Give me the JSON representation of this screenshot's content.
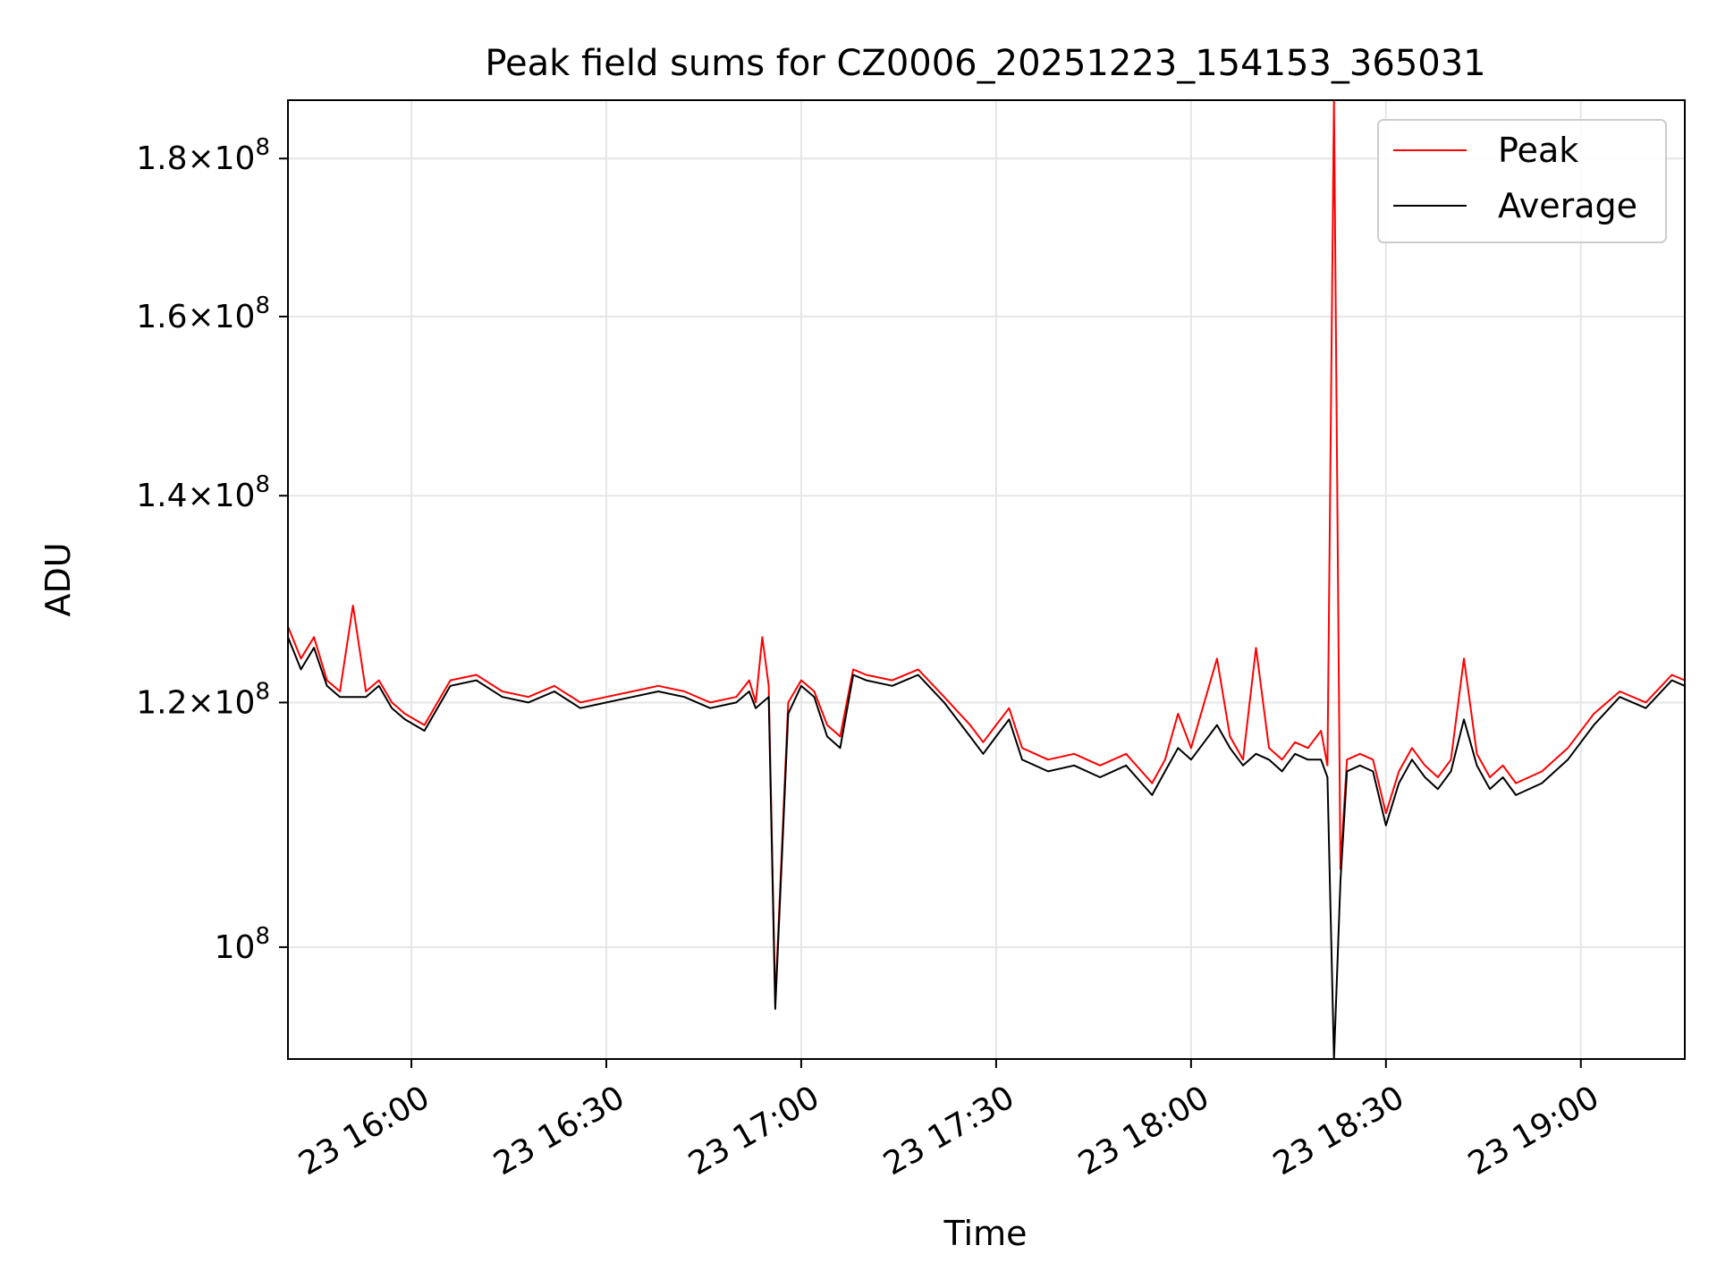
{
  "chart_data": {
    "type": "line",
    "title": "Peak field sums for CZ0006_20251223_154153_365031",
    "xlabel": "Time",
    "ylabel": "ADU",
    "y_scale": "log",
    "x_range": [
      "2025-12-23 15:41",
      "2025-12-23 19:16"
    ],
    "ylim": [
      92000000,
      188000000
    ],
    "grid": true,
    "legend_position": "upper right",
    "x_ticks": [
      {
        "time": "2025-12-23 16:00",
        "label": "23 16:00"
      },
      {
        "time": "2025-12-23 16:30",
        "label": "23 16:30"
      },
      {
        "time": "2025-12-23 17:00",
        "label": "23 17:00"
      },
      {
        "time": "2025-12-23 17:30",
        "label": "23 17:30"
      },
      {
        "time": "2025-12-23 18:00",
        "label": "23 18:00"
      },
      {
        "time": "2025-12-23 18:30",
        "label": "23 18:30"
      },
      {
        "time": "2025-12-23 19:00",
        "label": "23 19:00"
      }
    ],
    "y_ticks": [
      {
        "value": 100000000,
        "mantissa": "",
        "exponent": "8"
      },
      {
        "value": 120000000,
        "mantissa": "1.2",
        "exponent": "8"
      },
      {
        "value": 140000000,
        "mantissa": "1.4",
        "exponent": "8"
      },
      {
        "value": 160000000,
        "mantissa": "1.6",
        "exponent": "8"
      },
      {
        "value": 180000000,
        "mantissa": "1.8",
        "exponent": "8"
      }
    ],
    "series": [
      {
        "name": "Peak",
        "color": "#ff0000",
        "x": [
          "15:41",
          "15:43",
          "15:45",
          "15:47",
          "15:49",
          "15:51",
          "15:53",
          "15:55",
          "15:57",
          "15:59",
          "16:02",
          "16:06",
          "16:10",
          "16:14",
          "16:18",
          "16:22",
          "16:26",
          "16:30",
          "16:34",
          "16:38",
          "16:42",
          "16:46",
          "16:50",
          "16:52",
          "16:53",
          "16:54",
          "16:55",
          "16:56",
          "16:58",
          "17:00",
          "17:02",
          "17:04",
          "17:06",
          "17:08",
          "17:10",
          "17:14",
          "17:18",
          "17:22",
          "17:26",
          "17:28",
          "17:30",
          "17:32",
          "17:34",
          "17:38",
          "17:42",
          "17:46",
          "17:50",
          "17:54",
          "17:56",
          "17:58",
          "18:00",
          "18:04",
          "18:06",
          "18:08",
          "18:10",
          "18:12",
          "18:14",
          "18:16",
          "18:18",
          "18:20",
          "18:21",
          "18:22",
          "18:23",
          "18:24",
          "18:26",
          "18:28",
          "18:30",
          "18:32",
          "18:34",
          "18:36",
          "18:38",
          "18:40",
          "18:42",
          "18:44",
          "18:46",
          "18:48",
          "18:50",
          "18:54",
          "18:58",
          "19:02",
          "19:06",
          "19:10",
          "19:14",
          "19:16"
        ],
        "values": [
          127000000,
          124000000,
          126000000,
          122000000,
          121000000,
          129000000,
          121000000,
          122000000,
          120000000,
          119000000,
          118000000,
          122000000,
          122500000,
          121000000,
          120500000,
          121500000,
          120000000,
          120500000,
          121000000,
          121500000,
          121000000,
          120000000,
          120500000,
          122000000,
          120000000,
          126000000,
          121500000,
          96000000,
          120000000,
          122000000,
          121000000,
          118000000,
          117000000,
          123000000,
          122500000,
          122000000,
          123000000,
          120500000,
          118000000,
          116500000,
          118000000,
          119500000,
          116000000,
          115000000,
          115500000,
          114500000,
          115500000,
          113000000,
          115000000,
          119000000,
          116000000,
          124000000,
          117000000,
          115000000,
          125000000,
          116000000,
          115000000,
          116500000,
          116000000,
          117500000,
          114500000,
          188000000,
          106000000,
          115000000,
          115500000,
          115000000,
          110500000,
          114000000,
          116000000,
          114500000,
          113500000,
          115000000,
          124000000,
          115500000,
          113500000,
          114500000,
          113000000,
          114000000,
          116000000,
          119000000,
          121000000,
          120000000,
          122500000,
          122000000
        ]
      },
      {
        "name": "Average",
        "color": "#000000",
        "x": [
          "15:41",
          "15:43",
          "15:45",
          "15:47",
          "15:49",
          "15:51",
          "15:53",
          "15:55",
          "15:57",
          "15:59",
          "16:02",
          "16:06",
          "16:10",
          "16:14",
          "16:18",
          "16:22",
          "16:26",
          "16:30",
          "16:34",
          "16:38",
          "16:42",
          "16:46",
          "16:50",
          "16:52",
          "16:53",
          "16:54",
          "16:55",
          "16:56",
          "16:58",
          "17:00",
          "17:02",
          "17:04",
          "17:06",
          "17:08",
          "17:10",
          "17:14",
          "17:18",
          "17:22",
          "17:26",
          "17:28",
          "17:30",
          "17:32",
          "17:34",
          "17:38",
          "17:42",
          "17:46",
          "17:50",
          "17:54",
          "17:56",
          "17:58",
          "18:00",
          "18:04",
          "18:06",
          "18:08",
          "18:10",
          "18:12",
          "18:14",
          "18:16",
          "18:18",
          "18:20",
          "18:21",
          "18:22",
          "18:23",
          "18:24",
          "18:26",
          "18:28",
          "18:30",
          "18:32",
          "18:34",
          "18:36",
          "18:38",
          "18:40",
          "18:42",
          "18:44",
          "18:46",
          "18:48",
          "18:50",
          "18:54",
          "18:58",
          "19:02",
          "19:06",
          "19:10",
          "19:14",
          "19:16"
        ],
        "values": [
          126000000,
          123000000,
          125000000,
          121500000,
          120500000,
          120500000,
          120500000,
          121500000,
          119500000,
          118500000,
          117500000,
          121500000,
          122000000,
          120500000,
          120000000,
          121000000,
          119500000,
          120000000,
          120500000,
          121000000,
          120500000,
          119500000,
          120000000,
          121000000,
          119500000,
          120000000,
          120500000,
          95500000,
          119000000,
          121500000,
          120500000,
          117000000,
          116000000,
          122500000,
          122000000,
          121500000,
          122500000,
          120000000,
          117000000,
          115500000,
          117000000,
          118500000,
          115000000,
          114000000,
          114500000,
          113500000,
          114500000,
          112000000,
          114000000,
          116000000,
          115000000,
          118000000,
          116000000,
          114500000,
          115500000,
          115000000,
          114000000,
          115500000,
          115000000,
          115000000,
          113500000,
          92000000,
          105000000,
          114000000,
          114500000,
          114000000,
          109500000,
          113000000,
          115000000,
          113500000,
          112500000,
          114000000,
          118500000,
          114500000,
          112500000,
          113500000,
          112000000,
          113000000,
          115000000,
          118000000,
          120500000,
          119500000,
          122000000,
          121500000
        ]
      }
    ]
  }
}
